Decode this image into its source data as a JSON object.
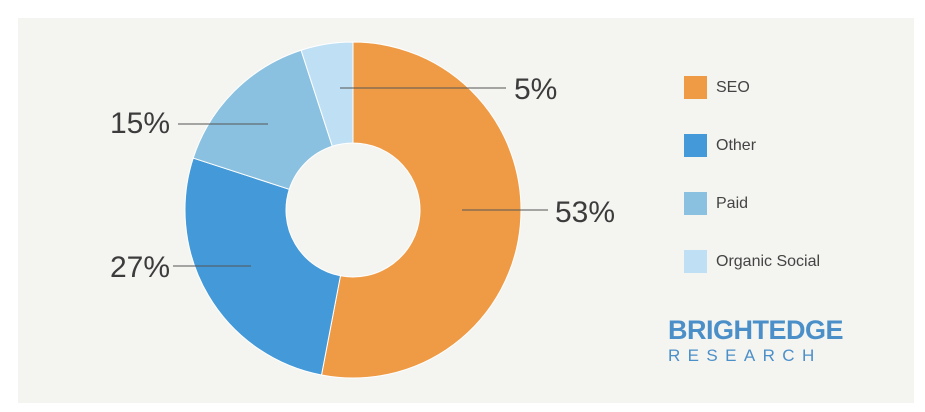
{
  "chart_data": {
    "type": "pie",
    "donut": true,
    "slices": [
      {
        "label": "SEO",
        "value": 53,
        "display": "53%",
        "color": "#ef9b45"
      },
      {
        "label": "Other",
        "value": 27,
        "display": "27%",
        "color": "#4499d8"
      },
      {
        "label": "Paid",
        "value": 15,
        "display": "15%",
        "color": "#8bc1e0"
      },
      {
        "label": "Organic Social",
        "value": 5,
        "display": "5%",
        "color": "#bfe0f4"
      }
    ],
    "legend_position": "right"
  },
  "brand": {
    "line1": "BRIGHTEDGE",
    "line2": "RESEARCH"
  }
}
